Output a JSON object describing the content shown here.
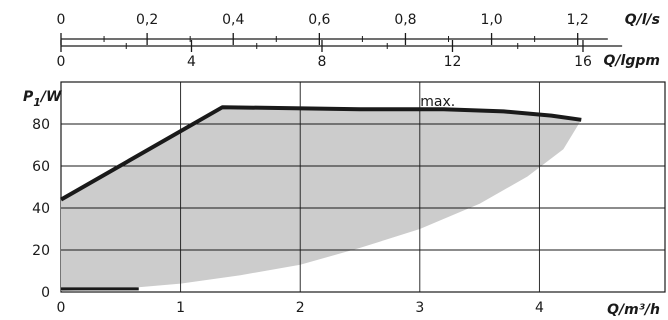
{
  "chart_data": {
    "type": "area",
    "xlabel": "Q/m³/h",
    "ylabel_main": "P",
    "ylabel_sub": "1",
    "ylabel_unit": "/W",
    "xlim": [
      0,
      5.05
    ],
    "ylim": [
      0,
      100
    ],
    "x_ticks": [
      "0",
      "1",
      "2",
      "3",
      "4"
    ],
    "y_ticks": [
      "0",
      "20",
      "40",
      "60",
      "80"
    ],
    "top_axis_ls": {
      "label": "Q/l/s",
      "ticks": [
        {
          "label": "0",
          "value": 0
        },
        {
          "label": "0,2",
          "value": 0.2
        },
        {
          "label": "0,4",
          "value": 0.4
        },
        {
          "label": "0,6",
          "value": 0.6
        },
        {
          "label": "0,8",
          "value": 0.8
        },
        {
          "label": "1,0",
          "value": 1.0
        },
        {
          "label": "1,2",
          "value": 1.2
        }
      ]
    },
    "top_axis_igpm": {
      "label": "Q/lgpm",
      "ticks": [
        {
          "label": "0",
          "value": 0
        },
        {
          "label": "4",
          "value": 4
        },
        {
          "label": "8",
          "value": 8
        },
        {
          "label": "12",
          "value": 12
        },
        {
          "label": "16",
          "value": 16
        }
      ]
    },
    "series": [
      {
        "name": "max.",
        "x": [
          0,
          1.35,
          2.5,
          3.2,
          3.7,
          4.1,
          4.35
        ],
        "y": [
          44,
          88,
          87,
          87,
          86,
          84,
          82
        ]
      },
      {
        "x": [
          0,
          0.65
        ],
        "y": [
          1.5,
          1.5
        ]
      }
    ],
    "area_upper": {
      "x": [
        0,
        1.35,
        2.5,
        3.2,
        3.7,
        4.1,
        4.35
      ],
      "y": [
        44,
        88,
        87,
        87,
        86,
        84,
        82
      ]
    },
    "area_lower": {
      "x": [
        4.35,
        4.2,
        3.9,
        3.5,
        3.0,
        2.5,
        2.0,
        1.5,
        1.0,
        0.5,
        0
      ],
      "y": [
        82,
        68,
        55,
        42,
        30,
        21,
        13,
        8,
        4,
        1.5,
        0.5
      ]
    },
    "annotations": [
      {
        "text": "max.",
        "x": 3.15,
        "y": 91
      }
    ],
    "grid": true,
    "colors": {
      "area": "#cccccc",
      "line": "#1a1a1a",
      "grid": "#1a1a1a"
    }
  }
}
